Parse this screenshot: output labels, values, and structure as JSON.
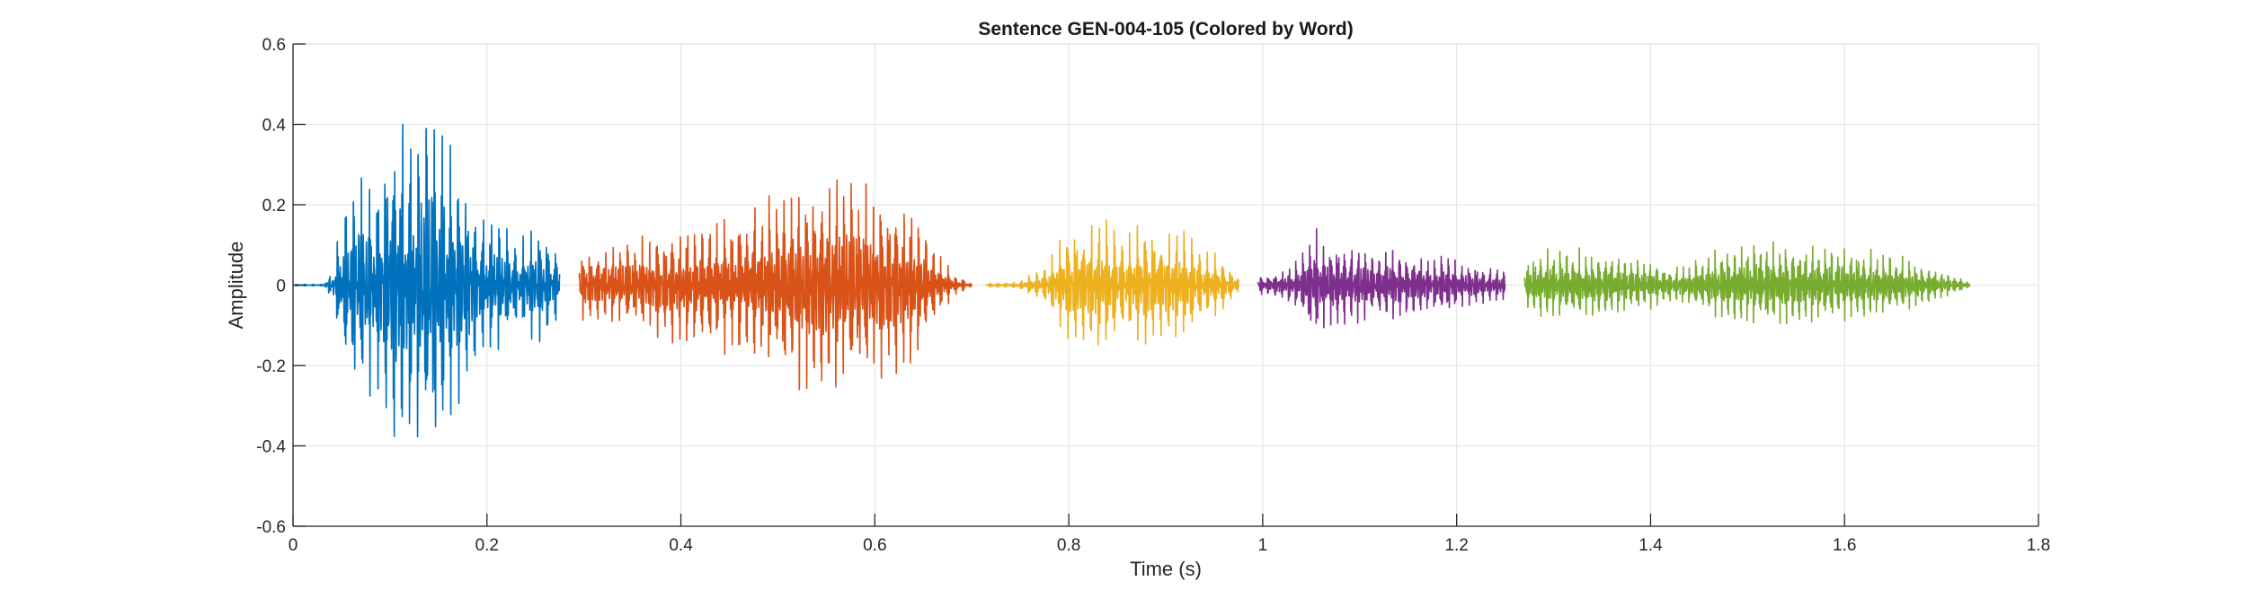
{
  "chart_data": {
    "type": "line",
    "title": "Sentence GEN-004-105 (Colored by Word)",
    "xlabel": "Time (s)",
    "ylabel": "Amplitude",
    "xlim": [
      0,
      1.8
    ],
    "ylim": [
      -0.6,
      0.6
    ],
    "xticks": [
      0,
      0.2,
      0.4,
      0.6,
      0.8,
      1,
      1.2,
      1.4,
      1.6,
      1.8
    ],
    "xtick_labels": [
      "0",
      "0.2",
      "0.4",
      "0.6",
      "0.8",
      "1",
      "1.2",
      "1.4",
      "1.6",
      "1.8"
    ],
    "yticks": [
      -0.6,
      -0.4,
      -0.2,
      0,
      0.2,
      0.4,
      0.6
    ],
    "ytick_labels": [
      "-0.6",
      "-0.4",
      "-0.2",
      "0",
      "0.2",
      "0.4",
      "0.6"
    ],
    "grid": true,
    "legend": "none",
    "series": [
      {
        "color": "#0072BD",
        "segments": [
          {
            "t_start": 0.0,
            "t_end": 0.275,
            "freq_hz": 120,
            "envelope": [
              [
                0.0,
                0.002
              ],
              [
                0.03,
                0.003
              ],
              [
                0.04,
                0.04
              ],
              [
                0.05,
                0.22
              ],
              [
                0.07,
                0.3
              ],
              [
                0.09,
                0.42
              ],
              [
                0.11,
                0.45
              ],
              [
                0.13,
                0.55
              ],
              [
                0.14,
                0.57
              ],
              [
                0.16,
                0.42
              ],
              [
                0.18,
                0.32
              ],
              [
                0.2,
                0.2
              ],
              [
                0.22,
                0.17
              ],
              [
                0.24,
                0.16
              ],
              [
                0.26,
                0.15
              ],
              [
                0.275,
                0.12
              ]
            ]
          }
        ]
      },
      {
        "color": "#D95319",
        "segments": [
          {
            "t_start": 0.295,
            "t_end": 0.7,
            "freq_hz": 130,
            "envelope": [
              [
                0.295,
                0.1
              ],
              [
                0.32,
                0.1
              ],
              [
                0.36,
                0.13
              ],
              [
                0.4,
                0.18
              ],
              [
                0.44,
                0.2
              ],
              [
                0.48,
                0.24
              ],
              [
                0.52,
                0.29
              ],
              [
                0.56,
                0.3
              ],
              [
                0.6,
                0.26
              ],
              [
                0.64,
                0.24
              ],
              [
                0.66,
                0.12
              ],
              [
                0.68,
                0.04
              ],
              [
                0.7,
                0.005
              ]
            ]
          }
        ]
      },
      {
        "color": "#EDB120",
        "segments": [
          {
            "t_start": 0.715,
            "t_end": 0.975,
            "freq_hz": 125,
            "envelope": [
              [
                0.715,
                0.005
              ],
              [
                0.75,
                0.01
              ],
              [
                0.77,
                0.05
              ],
              [
                0.79,
                0.12
              ],
              [
                0.81,
                0.18
              ],
              [
                0.84,
                0.18
              ],
              [
                0.87,
                0.17
              ],
              [
                0.9,
                0.16
              ],
              [
                0.93,
                0.14
              ],
              [
                0.95,
                0.1
              ],
              [
                0.965,
                0.05
              ],
              [
                0.975,
                0.03
              ]
            ]
          }
        ]
      },
      {
        "color": "#7E2F8E",
        "segments": [
          {
            "t_start": 0.995,
            "t_end": 1.25,
            "freq_hz": 140,
            "envelope": [
              [
                0.995,
                0.03
              ],
              [
                1.02,
                0.04
              ],
              [
                1.04,
                0.08
              ],
              [
                1.055,
                0.18
              ],
              [
                1.07,
                0.12
              ],
              [
                1.1,
                0.11
              ],
              [
                1.13,
                0.1
              ],
              [
                1.16,
                0.09
              ],
              [
                1.19,
                0.08
              ],
              [
                1.22,
                0.06
              ],
              [
                1.25,
                0.04
              ]
            ]
          }
        ]
      },
      {
        "color": "#77AC30",
        "segments": [
          {
            "t_start": 1.27,
            "t_end": 1.73,
            "freq_hz": 150,
            "envelope": [
              [
                1.27,
                0.07
              ],
              [
                1.29,
                0.1
              ],
              [
                1.32,
                0.1
              ],
              [
                1.36,
                0.09
              ],
              [
                1.4,
                0.07
              ],
              [
                1.42,
                0.05
              ],
              [
                1.44,
                0.06
              ],
              [
                1.47,
                0.1
              ],
              [
                1.5,
                0.12
              ],
              [
                1.54,
                0.12
              ],
              [
                1.58,
                0.11
              ],
              [
                1.62,
                0.1
              ],
              [
                1.66,
                0.08
              ],
              [
                1.69,
                0.05
              ],
              [
                1.72,
                0.02
              ],
              [
                1.73,
                0.005
              ]
            ]
          }
        ]
      }
    ]
  }
}
